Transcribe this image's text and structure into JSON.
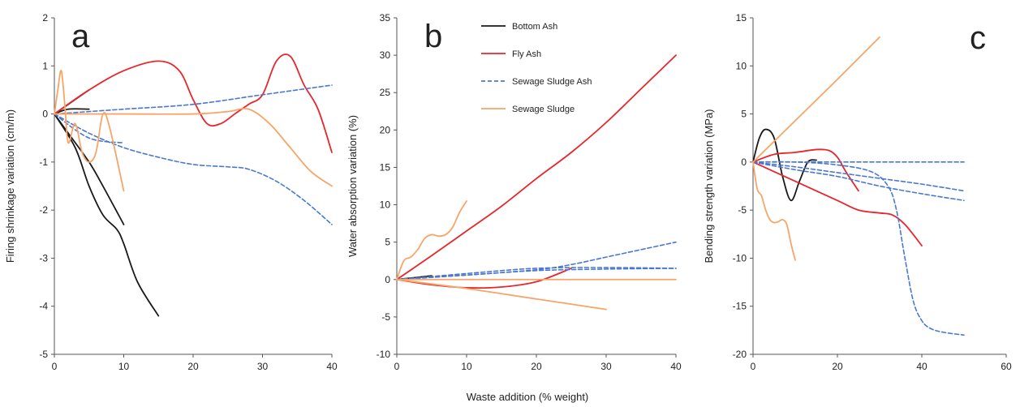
{
  "shared_xlabel": "Waste addition (% weight)",
  "legend": [
    {
      "label": "Bottom Ash",
      "color": "#1a1a1a",
      "dash": false
    },
    {
      "label": "Fly Ash",
      "color": "#e8262b",
      "dash": false
    },
    {
      "label": "Sewage Sludge Ash",
      "color": "#4a78d0",
      "dash": true
    },
    {
      "label": "Sewage Sludge",
      "color": "#f7a567",
      "dash": false
    }
  ],
  "chart_data": [
    {
      "type": "line",
      "panel": "a",
      "ylabel": "Firing shrinkage variation (cm/m)",
      "xlim": [
        0,
        40
      ],
      "ylim": [
        -5,
        2
      ],
      "xticks": [
        "0",
        "10",
        "20",
        "30",
        "40"
      ],
      "yticks": [
        "-5",
        "-4",
        "-3",
        "-2",
        "-1",
        "0",
        "1",
        "2"
      ],
      "series": [
        {
          "group": "Bottom Ash",
          "points": [
            [
              0,
              0
            ],
            [
              2,
              -0.4
            ],
            [
              5,
              -1.0
            ],
            [
              7,
              -1.5
            ],
            [
              10,
              -2.3
            ]
          ]
        },
        {
          "group": "Bottom Ash",
          "points": [
            [
              0,
              0
            ],
            [
              3,
              -0.7
            ],
            [
              5,
              -1.5
            ],
            [
              7,
              -2.1
            ],
            [
              9,
              -2.4
            ],
            [
              10,
              -2.7
            ],
            [
              12,
              -3.5
            ],
            [
              15,
              -4.2
            ]
          ]
        },
        {
          "group": "Bottom Ash",
          "points": [
            [
              0,
              0
            ],
            [
              2,
              0.1
            ],
            [
              5,
              0.1
            ]
          ]
        },
        {
          "group": "Bottom Ash",
          "points": [
            [
              0,
              0
            ],
            [
              2,
              0.2
            ],
            [
              5,
              0.5
            ]
          ]
        },
        {
          "group": "Fly Ash",
          "points": [
            [
              0,
              0
            ],
            [
              5,
              0.5
            ],
            [
              10,
              0.9
            ],
            [
              15,
              1.1
            ],
            [
              18,
              0.9
            ],
            [
              20,
              0.3
            ],
            [
              22,
              -0.2
            ],
            [
              24,
              -0.2
            ],
            [
              26,
              0
            ],
            [
              28,
              0.2
            ],
            [
              30,
              0.4
            ],
            [
              32,
              1.1
            ],
            [
              34,
              1.2
            ],
            [
              36,
              0.6
            ],
            [
              38,
              0.1
            ],
            [
              40,
              -0.8
            ]
          ]
        },
        {
          "group": "Sewage Sludge Ash",
          "points": [
            [
              0,
              0
            ],
            [
              10,
              0.1
            ],
            [
              20,
              0.2
            ],
            [
              30,
              0.4
            ],
            [
              40,
              0.6
            ]
          ]
        },
        {
          "group": "Sewage Sludge Ash",
          "points": [
            [
              0,
              0
            ],
            [
              5,
              -0.5
            ],
            [
              10,
              -0.6
            ]
          ]
        },
        {
          "group": "Sewage Sludge Ash",
          "points": [
            [
              0,
              0
            ],
            [
              5,
              -0.4
            ],
            [
              10,
              -0.7
            ],
            [
              15,
              -0.9
            ],
            [
              20,
              -1.05
            ],
            [
              25,
              -1.1
            ],
            [
              28,
              -1.15
            ],
            [
              32,
              -1.4
            ],
            [
              36,
              -1.8
            ],
            [
              40,
              -2.3
            ]
          ]
        },
        {
          "group": "Sewage Sludge",
          "points": [
            [
              0,
              0
            ],
            [
              0.5,
              0.5
            ],
            [
              1,
              0.9
            ],
            [
              1.5,
              0.2
            ],
            [
              2,
              -0.6
            ],
            [
              3,
              -0.2
            ],
            [
              4,
              -0.8
            ],
            [
              5,
              -1.0
            ],
            [
              6,
              -0.8
            ],
            [
              7,
              0
            ],
            [
              8,
              -0.3
            ],
            [
              10,
              -1.6
            ]
          ]
        },
        {
          "group": "Sewage Sludge",
          "points": [
            [
              0,
              0
            ],
            [
              10,
              0
            ],
            [
              20,
              0
            ],
            [
              25,
              0.05
            ],
            [
              28,
              0.1
            ],
            [
              31,
              -0.2
            ],
            [
              34,
              -0.7
            ],
            [
              37,
              -1.2
            ],
            [
              40,
              -1.5
            ]
          ]
        }
      ]
    },
    {
      "type": "line",
      "panel": "b",
      "ylabel": "Water absorption variation (%)",
      "xlim": [
        0,
        40
      ],
      "ylim": [
        -10,
        35
      ],
      "xticks": [
        "0",
        "10",
        "20",
        "30",
        "40"
      ],
      "yticks": [
        "-10",
        "-5",
        "0",
        "5",
        "10",
        "15",
        "20",
        "25",
        "30",
        "35"
      ],
      "series": [
        {
          "group": "Bottom Ash",
          "points": [
            [
              0,
              0
            ],
            [
              5,
              0.5
            ]
          ]
        },
        {
          "group": "Fly Ash",
          "points": [
            [
              0,
              0
            ],
            [
              5,
              3.2
            ],
            [
              10,
              6.5
            ],
            [
              15,
              9.8
            ],
            [
              20,
              13.5
            ],
            [
              25,
              17
            ],
            [
              30,
              21
            ],
            [
              35,
              25.5
            ],
            [
              40,
              30
            ]
          ]
        },
        {
          "group": "Fly Ash",
          "points": [
            [
              0,
              0
            ],
            [
              5,
              -0.7
            ],
            [
              10,
              -1.1
            ],
            [
              15,
              -1.0
            ],
            [
              20,
              -0.3
            ],
            [
              25,
              1.5
            ]
          ]
        },
        {
          "group": "Sewage Sludge Ash",
          "points": [
            [
              0,
              0
            ],
            [
              10,
              0.6
            ],
            [
              20,
              1.3
            ],
            [
              25,
              2
            ],
            [
              30,
              3
            ],
            [
              35,
              4
            ],
            [
              40,
              5
            ]
          ]
        },
        {
          "group": "Sewage Sludge Ash",
          "points": [
            [
              0,
              0
            ],
            [
              10,
              0.6
            ],
            [
              20,
              1.2
            ],
            [
              30,
              1.4
            ],
            [
              40,
              1.5
            ]
          ]
        },
        {
          "group": "Sewage Sludge Ash",
          "points": [
            [
              0,
              0
            ],
            [
              10,
              0.8
            ],
            [
              20,
              1.5
            ],
            [
              30,
              1.6
            ],
            [
              40,
              1.5
            ]
          ]
        },
        {
          "group": "Sewage Sludge",
          "points": [
            [
              0,
              0
            ],
            [
              1,
              2.5
            ],
            [
              2,
              3
            ],
            [
              3,
              4
            ],
            [
              4,
              5.5
            ],
            [
              5,
              6
            ],
            [
              6,
              5.8
            ],
            [
              7,
              6
            ],
            [
              8,
              7
            ],
            [
              9,
              9
            ],
            [
              10,
              10.5
            ]
          ]
        },
        {
          "group": "Sewage Sludge",
          "points": [
            [
              0,
              0
            ],
            [
              10,
              0
            ],
            [
              20,
              0
            ],
            [
              30,
              0
            ],
            [
              40,
              0
            ]
          ]
        },
        {
          "group": "Sewage Sludge",
          "points": [
            [
              0,
              0
            ],
            [
              10,
              -1.2
            ],
            [
              20,
              -2.6
            ],
            [
              30,
              -4
            ]
          ]
        }
      ]
    },
    {
      "type": "line",
      "panel": "c",
      "ylabel": "Bending strength variation (MPa)",
      "xlim": [
        0,
        60
      ],
      "ylim": [
        -20,
        15
      ],
      "xticks": [
        "0",
        "20",
        "40",
        "60"
      ],
      "yticks": [
        "-20",
        "-15",
        "-10",
        "-5",
        "0",
        "5",
        "10",
        "15"
      ],
      "series": [
        {
          "group": "Bottom Ash",
          "points": [
            [
              0,
              0
            ],
            [
              1.5,
              2.5
            ],
            [
              3,
              3.4
            ],
            [
              5,
              2.5
            ],
            [
              7,
              -1.5
            ],
            [
              9,
              -4
            ],
            [
              11,
              -2
            ],
            [
              13,
              0
            ],
            [
              15,
              0.2
            ]
          ]
        },
        {
          "group": "Fly Ash",
          "points": [
            [
              0,
              0
            ],
            [
              5,
              0.8
            ],
            [
              10,
              1
            ],
            [
              15,
              1.3
            ],
            [
              18,
              1.2
            ],
            [
              20,
              0.5
            ],
            [
              22,
              -1
            ],
            [
              25,
              -3
            ]
          ]
        },
        {
          "group": "Fly Ash",
          "points": [
            [
              0,
              0
            ],
            [
              10,
              -2
            ],
            [
              20,
              -4
            ],
            [
              25,
              -5
            ],
            [
              30,
              -5.3
            ],
            [
              33,
              -5.5
            ],
            [
              36,
              -6.5
            ],
            [
              40,
              -8.7
            ]
          ]
        },
        {
          "group": "Sewage Sludge Ash",
          "points": [
            [
              0,
              0
            ],
            [
              10,
              0
            ],
            [
              20,
              0
            ],
            [
              30,
              0
            ],
            [
              40,
              0
            ],
            [
              50,
              0
            ]
          ]
        },
        {
          "group": "Sewage Sludge Ash",
          "points": [
            [
              0,
              0
            ],
            [
              10,
              -0.5
            ],
            [
              20,
              -1.1
            ],
            [
              30,
              -1.7
            ],
            [
              40,
              -2.3
            ],
            [
              50,
              -3
            ]
          ]
        },
        {
          "group": "Sewage Sludge Ash",
          "points": [
            [
              0,
              0
            ],
            [
              10,
              -0.8
            ],
            [
              20,
              -1.5
            ],
            [
              30,
              -2.5
            ],
            [
              40,
              -3.3
            ],
            [
              50,
              -4
            ]
          ]
        },
        {
          "group": "Sewage Sludge Ash",
          "points": [
            [
              0,
              0
            ],
            [
              10,
              0
            ],
            [
              20,
              -0.3
            ],
            [
              28,
              -1
            ],
            [
              32,
              -2.5
            ],
            [
              34,
              -5
            ],
            [
              36,
              -10
            ],
            [
              38,
              -14.5
            ],
            [
              40,
              -16.5
            ],
            [
              42,
              -17.3
            ],
            [
              45,
              -17.7
            ],
            [
              50,
              -18
            ]
          ]
        },
        {
          "group": "Sewage Sludge",
          "points": [
            [
              0,
              0
            ],
            [
              10,
              4.3
            ],
            [
              20,
              8.6
            ],
            [
              30,
              13
            ]
          ]
        },
        {
          "group": "Sewage Sludge",
          "points": [
            [
              0,
              0
            ],
            [
              1,
              -2.8
            ],
            [
              2,
              -3.5
            ],
            [
              3,
              -5
            ],
            [
              4,
              -6
            ],
            [
              5,
              -6.3
            ],
            [
              6,
              -6.2
            ],
            [
              7,
              -6
            ],
            [
              8,
              -6.5
            ],
            [
              9,
              -8.5
            ],
            [
              10,
              -10.2
            ]
          ]
        }
      ]
    }
  ]
}
